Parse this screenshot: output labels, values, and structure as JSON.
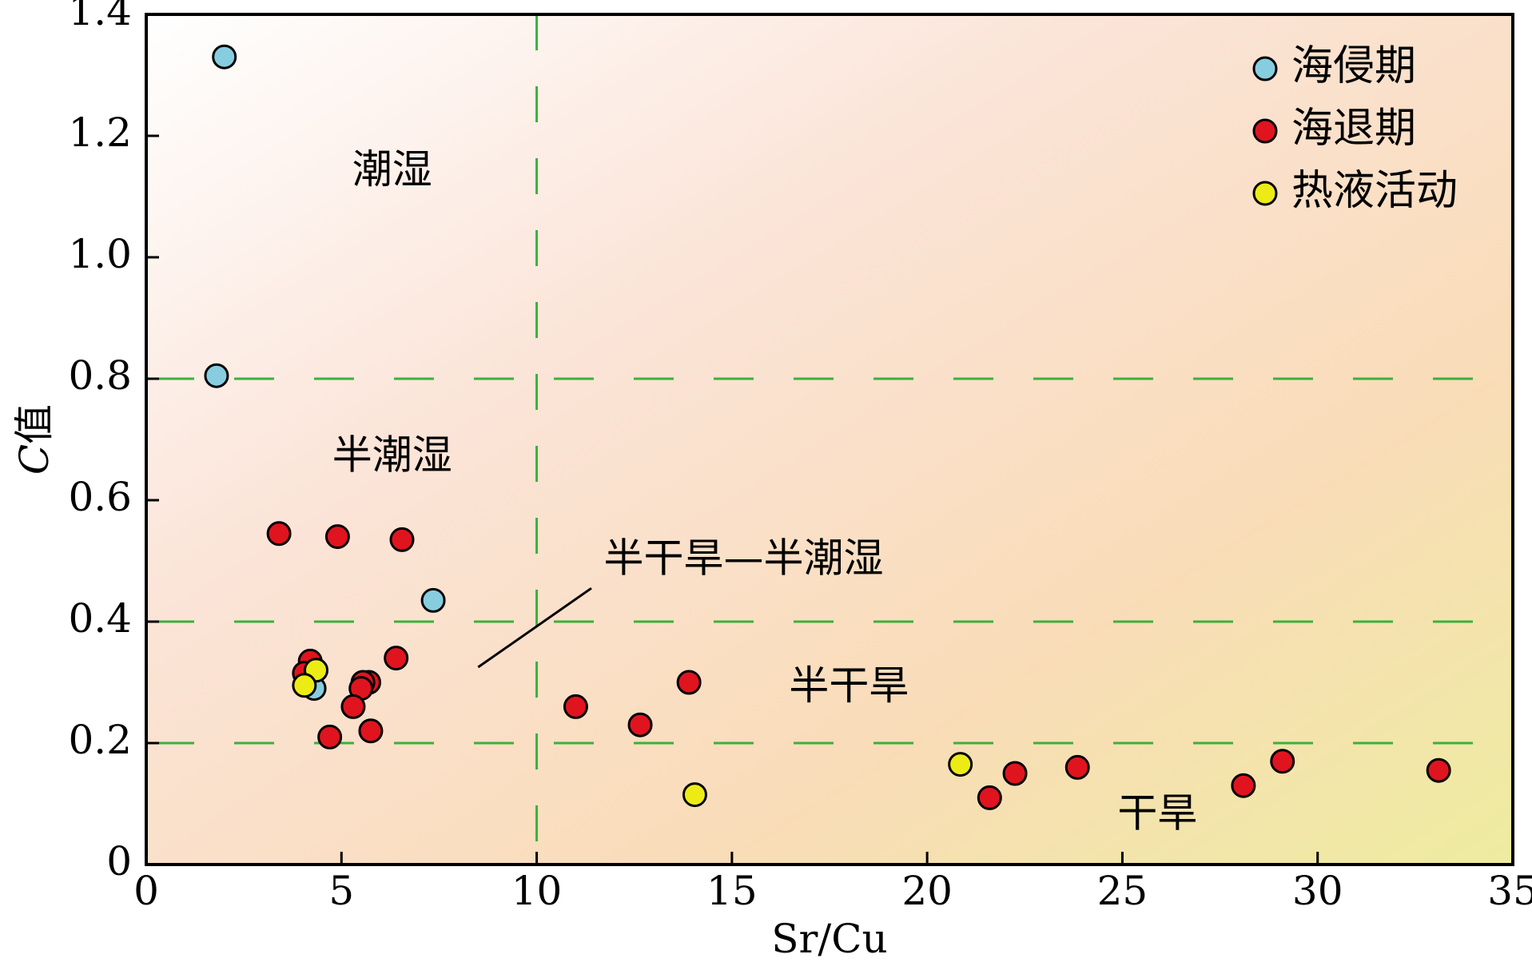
{
  "chart_data": {
    "type": "scatter",
    "title": "",
    "xlabel": "Sr/Cu",
    "ylabel_italic": "C",
    "ylabel_suffix": "值",
    "xlim": [
      0,
      35
    ],
    "ylim": [
      0,
      1.4
    ],
    "xticks": [
      0,
      5,
      10,
      15,
      20,
      25,
      30,
      35
    ],
    "xtick_labels": [
      "0",
      "5",
      "10",
      "15",
      "20",
      "25",
      "30",
      "35"
    ],
    "yticks": [
      0,
      0.2,
      0.4,
      0.6,
      0.8,
      1.0,
      1.2,
      1.4
    ],
    "ytick_labels": [
      "0",
      "0.2",
      "0.4",
      "0.6",
      "0.8",
      "1.0",
      "1.2",
      "1.4"
    ],
    "grid": false,
    "background": "gradient from white (top-left) through light peach to pale yellow-green (bottom-right)",
    "reference_lines": {
      "style": "dashed",
      "color": "#3cb03c",
      "vertical_x": [
        10
      ],
      "horizontal_y": [
        0.2,
        0.4,
        0.8
      ]
    },
    "region_labels": [
      {
        "text": "潮湿",
        "x": 6.3,
        "y": 1.14
      },
      {
        "text": "半潮湿",
        "x": 6.3,
        "y": 0.67
      },
      {
        "text": "半干旱—半潮湿",
        "x": 15.3,
        "y": 0.5
      },
      {
        "text": "半干旱",
        "x": 18,
        "y": 0.29
      },
      {
        "text": "干旱",
        "x": 25.9,
        "y": 0.08
      }
    ],
    "annotation_line": {
      "from": [
        8.5,
        0.325
      ],
      "to": [
        11.4,
        0.455
      ]
    },
    "legend_position": "top-right",
    "series": [
      {
        "name": "海侵期",
        "color": "#87cde0",
        "points": [
          [
            2.0,
            1.33
          ],
          [
            1.8,
            0.805
          ],
          [
            7.35,
            0.435
          ],
          [
            4.3,
            0.29
          ]
        ]
      },
      {
        "name": "海退期",
        "color": "#e0141e",
        "points": [
          [
            3.4,
            0.545
          ],
          [
            4.9,
            0.54
          ],
          [
            6.55,
            0.535
          ],
          [
            6.4,
            0.34
          ],
          [
            4.2,
            0.335
          ],
          [
            4.05,
            0.315
          ],
          [
            5.7,
            0.3
          ],
          [
            5.55,
            0.3
          ],
          [
            5.5,
            0.29
          ],
          [
            5.3,
            0.26
          ],
          [
            4.7,
            0.21
          ],
          [
            5.75,
            0.22
          ],
          [
            11.0,
            0.26
          ],
          [
            12.65,
            0.23
          ],
          [
            13.9,
            0.3
          ],
          [
            21.6,
            0.11
          ],
          [
            22.25,
            0.15
          ],
          [
            23.85,
            0.16
          ],
          [
            28.1,
            0.13
          ],
          [
            29.1,
            0.17
          ],
          [
            33.1,
            0.155
          ]
        ]
      },
      {
        "name": "热液活动",
        "color": "#ecec14",
        "points": [
          [
            4.35,
            0.32
          ],
          [
            4.05,
            0.295
          ],
          [
            14.05,
            0.115
          ],
          [
            20.85,
            0.165
          ]
        ]
      }
    ]
  }
}
